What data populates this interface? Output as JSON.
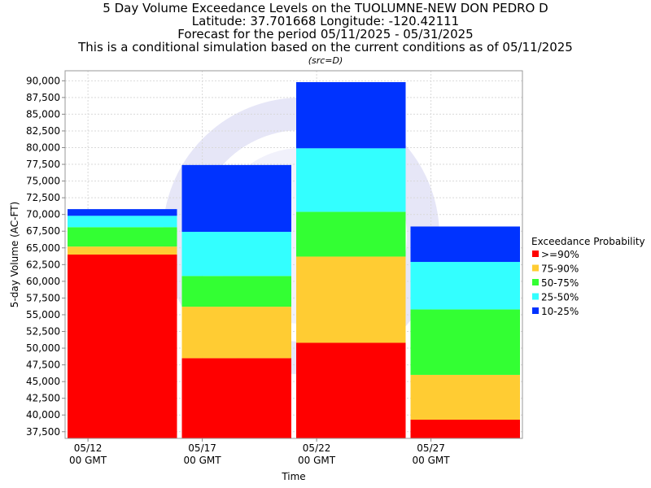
{
  "chart_data": {
    "type": "bar",
    "stacked": true,
    "title_lines": [
      "5 Day Volume Exceedance Levels on the TUOLUMNE-NEW DON PEDRO D",
      "Latitude: 37.701668 Longitude: -120.42111",
      "Forecast for the period 05/11/2025 - 05/31/2025",
      "This is a conditional simulation based on the current conditions as of 05/11/2025"
    ],
    "subtitle": "(src=D)",
    "xlabel": "Time",
    "ylabel": "5-day Volume (AC-FT)",
    "ylim": [
      36500,
      91500
    ],
    "yticks": [
      {
        "value": 37500,
        "label": "37,500"
      },
      {
        "value": 40000,
        "label": "40,000"
      },
      {
        "value": 42500,
        "label": "42,500"
      },
      {
        "value": 45000,
        "label": "45,000"
      },
      {
        "value": 47500,
        "label": "47,500"
      },
      {
        "value": 50000,
        "label": "50,000"
      },
      {
        "value": 52500,
        "label": "52,500"
      },
      {
        "value": 55000,
        "label": "55,000"
      },
      {
        "value": 57500,
        "label": "57,500"
      },
      {
        "value": 60000,
        "label": "60,000"
      },
      {
        "value": 62500,
        "label": "62,500"
      },
      {
        "value": 65000,
        "label": "65,000"
      },
      {
        "value": 67500,
        "label": "67,500"
      },
      {
        "value": 70000,
        "label": "70,000"
      },
      {
        "value": 72500,
        "label": "72,500"
      },
      {
        "value": 75000,
        "label": "75,000"
      },
      {
        "value": 77500,
        "label": "77,500"
      },
      {
        "value": 80000,
        "label": "80,000"
      },
      {
        "value": 82500,
        "label": "82,500"
      },
      {
        "value": 85000,
        "label": "85,000"
      },
      {
        "value": 87500,
        "label": "87,500"
      },
      {
        "value": 90000,
        "label": "90,000"
      }
    ],
    "x_domain": [
      "2025-05-11",
      "2025-05-31"
    ],
    "xticks": [
      {
        "date": "2025-05-12",
        "line1": "05/12",
        "line2": "00 GMT"
      },
      {
        "date": "2025-05-17",
        "line1": "05/17",
        "line2": "00 GMT"
      },
      {
        "date": "2025-05-22",
        "line1": "05/22",
        "line2": "00 GMT"
      },
      {
        "date": "2025-05-27",
        "line1": "05/27",
        "line2": "00 GMT"
      }
    ],
    "periods": [
      {
        "start": "2025-05-11",
        "end": "2025-05-16",
        "levels": [
          64000,
          65200,
          68100,
          69800,
          70800
        ]
      },
      {
        "start": "2025-05-16",
        "end": "2025-05-21",
        "levels": [
          48500,
          56200,
          60800,
          67400,
          77400
        ]
      },
      {
        "start": "2025-05-21",
        "end": "2025-05-26",
        "levels": [
          50800,
          63700,
          70400,
          79900,
          89800
        ]
      },
      {
        "start": "2025-05-26",
        "end": "2025-05-31",
        "levels": [
          39300,
          46000,
          55800,
          62900,
          68200
        ]
      }
    ],
    "series": [
      {
        "name": ">=90%",
        "color": "#ff0000"
      },
      {
        "name": "75-90%",
        "color": "#ffcc33"
      },
      {
        "name": "50-75%",
        "color": "#33ff33"
      },
      {
        "name": "25-50%",
        "color": "#33ffff"
      },
      {
        "name": "10-25%",
        "color": "#0033ff"
      }
    ],
    "legend": {
      "title": "Exceedance Probability",
      "position": "right"
    },
    "grid": true,
    "colors": {
      "grid": "#d9d9d9",
      "plot_border": "#999999",
      "watermark": "#e4e4f8"
    }
  }
}
